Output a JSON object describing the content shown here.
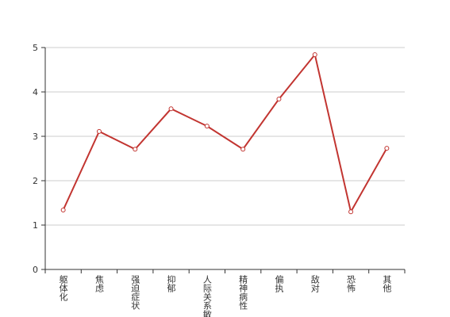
{
  "chart_data": {
    "type": "line",
    "categories": [
      "躯体化",
      "焦虑",
      "强迫症状",
      "抑郁",
      "人际关系敏感",
      "精神病性",
      "偏执",
      "敌对",
      "恐怖",
      "其他"
    ],
    "values": [
      1.34,
      3.11,
      2.71,
      3.62,
      3.23,
      2.71,
      3.84,
      4.84,
      1.3,
      2.73
    ],
    "color": "#c23531",
    "ylim": [
      0,
      5
    ],
    "yticks": [
      0,
      1,
      2,
      3,
      4,
      5
    ],
    "grid": true
  }
}
